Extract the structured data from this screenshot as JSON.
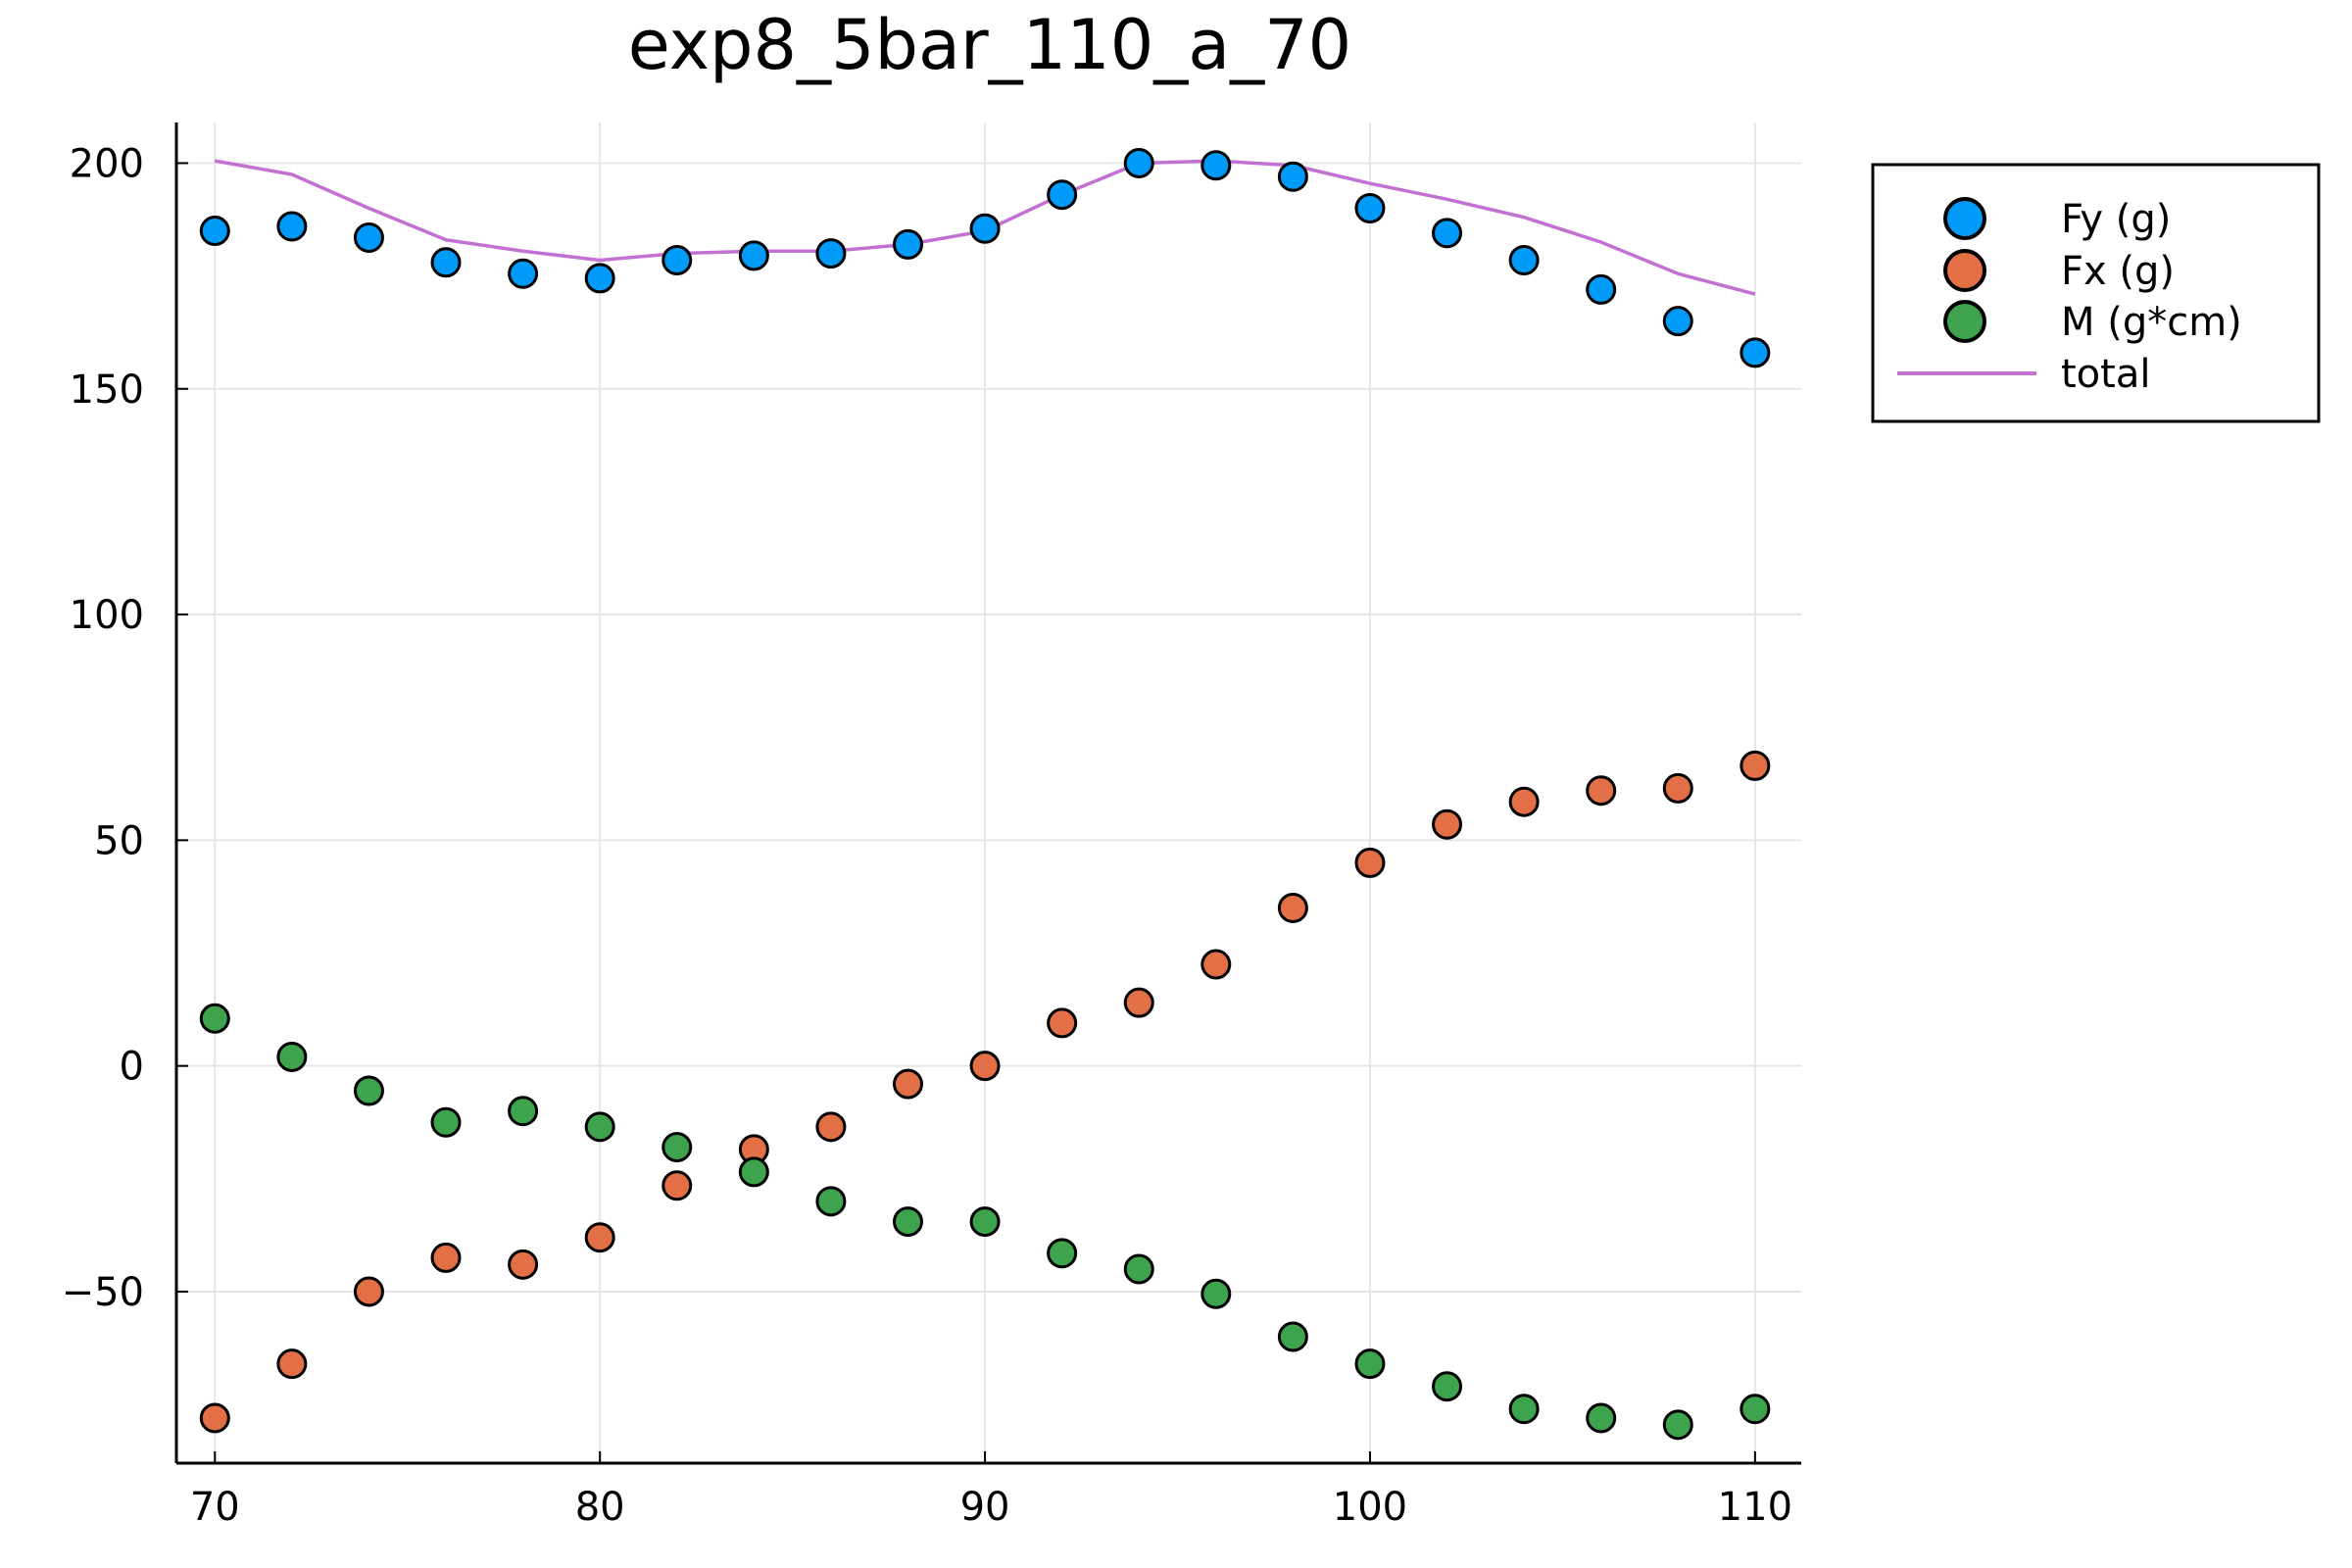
{
  "chart_data": {
    "type": "scatter",
    "title": "exp8_5bar_110_a_70",
    "xlabel": "",
    "ylabel": "",
    "xlim": [
      69,
      111.2
    ],
    "ylim": [
      -88,
      209
    ],
    "x_ticks": [
      70,
      80,
      90,
      100,
      110
    ],
    "y_ticks": [
      -50,
      0,
      50,
      100,
      150,
      200
    ],
    "y_tick_labels": [
      "−50",
      "0",
      "50",
      "100",
      "150",
      "200"
    ],
    "grid": true,
    "legend_position": "top-right-outside",
    "x": [
      70,
      72,
      74,
      76,
      78,
      80,
      82,
      84,
      86,
      88,
      90,
      92,
      94,
      96,
      98,
      100,
      102,
      104,
      106,
      108,
      110
    ],
    "series": [
      {
        "name": "Fy (g)",
        "kind": "scatter",
        "color": "#009af9",
        "values": [
          185,
          186,
          183.5,
          178,
          175.5,
          174.5,
          178.5,
          179.5,
          180,
          182,
          185.5,
          193,
          200,
          199.5,
          197,
          190,
          184.5,
          178.5,
          172,
          165,
          158
        ]
      },
      {
        "name": "Fx (g)",
        "kind": "scatter",
        "color": "#e26f46",
        "values": [
          -78,
          -66,
          -50,
          -42.5,
          -44,
          -38,
          -26.5,
          -18.5,
          -13.5,
          -4,
          0,
          9.5,
          14,
          22.5,
          35,
          45,
          53.5,
          58.5,
          61,
          61.5,
          66.5
        ]
      },
      {
        "name": "M (g*cm)",
        "kind": "scatter",
        "color": "#3da44d",
        "values": [
          10.5,
          2,
          -5.5,
          -12.5,
          -10,
          -13.5,
          -18,
          -23.5,
          -30,
          -34.5,
          -34.5,
          -41.5,
          -45,
          -50.5,
          -60,
          -66,
          -71,
          -76,
          -78,
          -79.5,
          -76
        ]
      },
      {
        "name": "total",
        "kind": "line",
        "color": "#c271d2",
        "values": [
          200.5,
          197.5,
          190,
          183,
          180.5,
          178.5,
          180,
          180.5,
          180.5,
          182,
          185,
          193,
          200,
          200.5,
          199.5,
          195.5,
          192,
          188,
          182.5,
          175.5,
          171
        ]
      }
    ]
  }
}
